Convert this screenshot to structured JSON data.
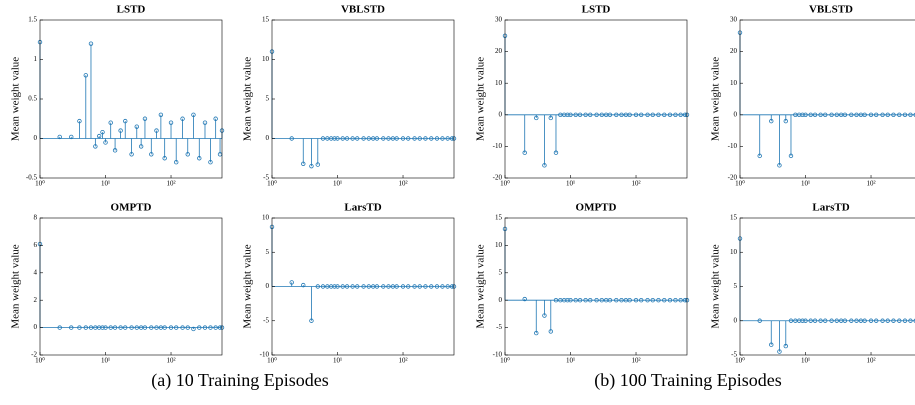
{
  "chart_data": [
    {
      "type": "stem",
      "title": "LSTD",
      "ylabel": "Mean weight value",
      "color": "#1f77b4",
      "xscale": "log",
      "x": [
        1,
        2,
        3,
        4,
        5,
        6,
        7,
        8,
        9,
        10,
        12,
        14,
        17,
        20,
        25,
        30,
        35,
        40,
        50,
        60,
        70,
        80,
        100,
        120,
        150,
        180,
        220,
        270,
        330,
        400,
        480,
        560,
        600
      ],
      "values": [
        1.22,
        0.02,
        0.02,
        0.22,
        0.8,
        1.2,
        -0.1,
        0.03,
        0.08,
        -0.05,
        0.2,
        -0.15,
        0.1,
        0.22,
        -0.2,
        0.15,
        -0.1,
        0.25,
        -0.2,
        0.1,
        0.3,
        -0.25,
        0.2,
        -0.3,
        0.25,
        -0.2,
        0.3,
        -0.25,
        0.2,
        -0.3,
        0.25,
        -0.2,
        0.1
      ],
      "xlim": [
        1,
        600
      ],
      "xticks": [
        {
          "value": 1,
          "label": "10⁰"
        },
        {
          "value": 10,
          "label": "10¹"
        },
        {
          "value": 100,
          "label": "10²"
        }
      ],
      "ylim": [
        -0.5,
        1.5
      ],
      "yticks": [
        -0.5,
        0,
        0.5,
        1,
        1.5
      ]
    },
    {
      "type": "stem",
      "title": "VBLSTD",
      "ylabel": "Mean weight value",
      "color": "#1f77b4",
      "xscale": "log",
      "x": [
        1,
        2,
        3,
        4,
        5,
        6,
        7,
        8,
        9,
        10,
        12,
        14,
        17,
        20,
        25,
        30,
        35,
        40,
        50,
        60,
        70,
        80,
        100,
        120,
        150,
        180,
        220,
        270,
        330,
        400,
        480,
        560,
        600
      ],
      "values": [
        11,
        0,
        -3.2,
        -3.5,
        -3.3,
        0,
        0,
        0,
        0,
        0,
        0,
        0,
        0,
        0,
        0,
        0,
        0,
        0,
        0,
        0,
        0,
        0,
        0,
        0,
        0,
        0,
        0,
        0,
        0,
        0,
        0,
        0,
        0
      ],
      "xlim": [
        1,
        600
      ],
      "xticks": [
        {
          "value": 1,
          "label": "10⁰"
        },
        {
          "value": 10,
          "label": "10¹"
        },
        {
          "value": 100,
          "label": "10²"
        }
      ],
      "ylim": [
        -5,
        15
      ],
      "yticks": [
        -5,
        0,
        5,
        10,
        15
      ]
    },
    {
      "type": "stem",
      "title": "LSTD",
      "ylabel": "Mean weight value",
      "color": "#1f77b4",
      "xscale": "log",
      "x": [
        1,
        2,
        3,
        4,
        5,
        6,
        7,
        8,
        9,
        10,
        12,
        14,
        17,
        20,
        25,
        30,
        35,
        40,
        50,
        60,
        70,
        80,
        100,
        120,
        150,
        180,
        220,
        270,
        330,
        400,
        480,
        560,
        600
      ],
      "values": [
        25,
        -12,
        -1,
        -16,
        -1,
        -12,
        0,
        0,
        0,
        0,
        0,
        0,
        0,
        0,
        0,
        0,
        0,
        0,
        0,
        0,
        0,
        0,
        0,
        0,
        0,
        0,
        0,
        0,
        0,
        0,
        0,
        0,
        0
      ],
      "xlim": [
        1,
        600
      ],
      "xticks": [
        {
          "value": 1,
          "label": "10⁰"
        },
        {
          "value": 10,
          "label": "10¹"
        },
        {
          "value": 100,
          "label": "10²"
        }
      ],
      "ylim": [
        -20,
        30
      ],
      "yticks": [
        -20,
        -10,
        0,
        10,
        20,
        30
      ]
    },
    {
      "type": "stem",
      "title": "VBLSTD",
      "ylabel": "Mean weight value",
      "color": "#1f77b4",
      "xscale": "log",
      "x": [
        1,
        2,
        3,
        4,
        5,
        6,
        7,
        8,
        9,
        10,
        12,
        14,
        17,
        20,
        25,
        30,
        35,
        40,
        50,
        60,
        70,
        80,
        100,
        120,
        150,
        180,
        220,
        270,
        330,
        400,
        480,
        560,
        600
      ],
      "values": [
        26,
        -13,
        -2,
        -16,
        -2,
        -13,
        0,
        0,
        0,
        0,
        0,
        0,
        0,
        0,
        0,
        0,
        0,
        0,
        0,
        0,
        0,
        0,
        0,
        0,
        0,
        0,
        0,
        0,
        0,
        0,
        0,
        0,
        0
      ],
      "xlim": [
        1,
        600
      ],
      "xticks": [
        {
          "value": 1,
          "label": "10⁰"
        },
        {
          "value": 10,
          "label": "10¹"
        },
        {
          "value": 100,
          "label": "10²"
        }
      ],
      "ylim": [
        -20,
        30
      ],
      "yticks": [
        -20,
        -10,
        0,
        10,
        20,
        30
      ]
    },
    {
      "type": "stem",
      "title": "OMPTD",
      "ylabel": "Mean weight value",
      "color": "#1f77b4",
      "xscale": "log",
      "x": [
        1,
        2,
        3,
        4,
        5,
        6,
        7,
        8,
        9,
        10,
        12,
        14,
        17,
        20,
        25,
        30,
        35,
        40,
        50,
        60,
        70,
        80,
        100,
        120,
        150,
        180,
        220,
        270,
        330,
        400,
        480,
        560,
        600
      ],
      "values": [
        6.1,
        0,
        0,
        0,
        0,
        0,
        0,
        0,
        0,
        0,
        0,
        0,
        0,
        0,
        0,
        0,
        0,
        0,
        0,
        0,
        0,
        0,
        0,
        0,
        0,
        0,
        -0.1,
        0,
        0,
        0,
        0,
        0,
        0
      ],
      "xlim": [
        1,
        600
      ],
      "xticks": [
        {
          "value": 1,
          "label": "10⁰"
        },
        {
          "value": 10,
          "label": "10¹"
        },
        {
          "value": 100,
          "label": "10²"
        }
      ],
      "ylim": [
        -2,
        8
      ],
      "yticks": [
        -2,
        0,
        2,
        4,
        6,
        8
      ]
    },
    {
      "type": "stem",
      "title": "LarsTD",
      "ylabel": "Mean weight value",
      "color": "#1f77b4",
      "xscale": "log",
      "x": [
        1,
        2,
        3,
        4,
        5,
        6,
        7,
        8,
        9,
        10,
        12,
        14,
        17,
        20,
        25,
        30,
        35,
        40,
        50,
        60,
        70,
        80,
        100,
        120,
        150,
        180,
        220,
        270,
        330,
        400,
        480,
        560,
        600
      ],
      "values": [
        8.7,
        0.6,
        0.2,
        -5,
        0,
        0,
        0,
        0,
        0,
        0,
        0,
        0,
        0,
        0,
        0,
        0,
        0,
        0,
        0,
        0,
        0,
        0,
        0,
        0,
        0,
        0,
        0,
        0,
        0,
        0,
        0,
        0,
        0
      ],
      "xlim": [
        1,
        600
      ],
      "xticks": [
        {
          "value": 1,
          "label": "10⁰"
        },
        {
          "value": 10,
          "label": "10¹"
        },
        {
          "value": 100,
          "label": "10²"
        }
      ],
      "ylim": [
        -10,
        10
      ],
      "yticks": [
        -10,
        -5,
        0,
        5,
        10
      ]
    },
    {
      "type": "stem",
      "title": "OMPTD",
      "ylabel": "Mean weight value",
      "color": "#1f77b4",
      "xscale": "log",
      "x": [
        1,
        2,
        3,
        4,
        5,
        6,
        7,
        8,
        9,
        10,
        12,
        14,
        17,
        20,
        25,
        30,
        35,
        40,
        50,
        60,
        70,
        80,
        100,
        120,
        150,
        180,
        220,
        270,
        330,
        400,
        480,
        560,
        600
      ],
      "values": [
        13,
        0.2,
        -6,
        -2.8,
        -5.7,
        0,
        0,
        0,
        0,
        0,
        0,
        0,
        0,
        0,
        0,
        0,
        0,
        0,
        0,
        0,
        0,
        0,
        0,
        0,
        0,
        0,
        0,
        0,
        0,
        0,
        0,
        0,
        0
      ],
      "xlim": [
        1,
        600
      ],
      "xticks": [
        {
          "value": 1,
          "label": "10⁰"
        },
        {
          "value": 10,
          "label": "10¹"
        },
        {
          "value": 100,
          "label": "10²"
        }
      ],
      "ylim": [
        -10,
        15
      ],
      "yticks": [
        -10,
        -5,
        0,
        5,
        10,
        15
      ]
    },
    {
      "type": "stem",
      "title": "LarsTD",
      "ylabel": "Mean weight value",
      "color": "#1f77b4",
      "xscale": "log",
      "x": [
        1,
        2,
        3,
        4,
        5,
        6,
        7,
        8,
        9,
        10,
        12,
        14,
        17,
        20,
        25,
        30,
        35,
        40,
        50,
        60,
        70,
        80,
        100,
        120,
        150,
        180,
        220,
        270,
        330,
        400,
        480,
        560,
        600
      ],
      "values": [
        12,
        0,
        -3.5,
        -4.5,
        -3.7,
        0,
        0,
        0,
        0,
        0,
        0,
        0,
        0,
        0,
        0,
        0,
        0,
        0,
        0,
        0,
        0,
        0,
        0,
        0,
        0,
        0,
        0,
        0,
        0,
        0,
        0,
        0,
        0
      ],
      "xlim": [
        1,
        600
      ],
      "xticks": [
        {
          "value": 1,
          "label": "10⁰"
        },
        {
          "value": 10,
          "label": "10¹"
        },
        {
          "value": 100,
          "label": "10²"
        }
      ],
      "ylim": [
        -5,
        15
      ],
      "yticks": [
        -5,
        0,
        5,
        10,
        15
      ]
    }
  ],
  "captions": [
    "(a) 10 Training Episodes",
    "(b) 100 Training Episodes"
  ]
}
